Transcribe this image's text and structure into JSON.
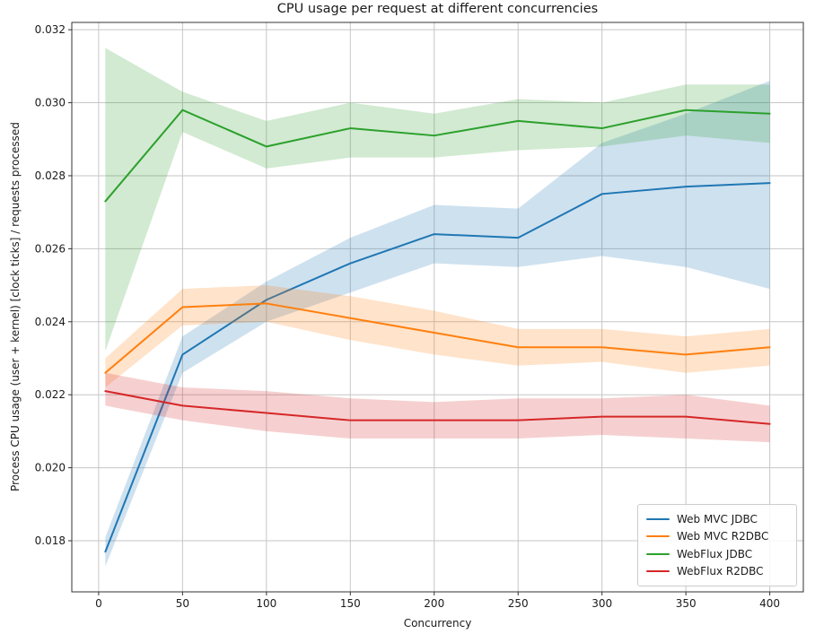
{
  "chart_data": {
    "type": "line",
    "title": "CPU usage per request at different concurrencies",
    "xlabel": "Concurrency",
    "ylabel": "Process CPU usage (user + kernel) [clock ticks] / requests processed",
    "x": [
      4,
      50,
      100,
      150,
      200,
      250,
      300,
      350,
      400
    ],
    "xticks": [
      0,
      50,
      100,
      150,
      200,
      250,
      300,
      350,
      400
    ],
    "xticklabels": [
      "0",
      "50",
      "100",
      "150",
      "200",
      "250",
      "300",
      "350",
      "400"
    ],
    "yticks": [
      0.018,
      0.02,
      0.022,
      0.024,
      0.026,
      0.028,
      0.03,
      0.032
    ],
    "yticklabels": [
      "0.018",
      "0.020",
      "0.022",
      "0.024",
      "0.026",
      "0.028",
      "0.030",
      "0.032"
    ],
    "xlim": [
      -16,
      420
    ],
    "ylim": [
      0.0166,
      0.0322
    ],
    "grid": true,
    "legend_position": "lower right",
    "band_alpha": 0.22,
    "grid_color": "#c6c6c6",
    "axis_color": "#333333",
    "text_color": "#1a1a1a",
    "series": [
      {
        "name": "Web MVC JDBC",
        "color": "#1f77b4",
        "mean": [
          0.0177,
          0.0231,
          0.0246,
          0.0256,
          0.0264,
          0.0263,
          0.0275,
          0.0277,
          0.0278
        ],
        "low": [
          0.0173,
          0.0226,
          0.024,
          0.0248,
          0.0256,
          0.0255,
          0.0258,
          0.0255,
          0.0249
        ],
        "high": [
          0.0181,
          0.0236,
          0.0251,
          0.0263,
          0.0272,
          0.0271,
          0.0289,
          0.0297,
          0.0306
        ]
      },
      {
        "name": "Web MVC R2DBC",
        "color": "#ff7f0e",
        "mean": [
          0.0226,
          0.0244,
          0.0245,
          0.0241,
          0.0237,
          0.0233,
          0.0233,
          0.0231,
          0.0233
        ],
        "low": [
          0.0222,
          0.0239,
          0.024,
          0.0235,
          0.0231,
          0.0228,
          0.0229,
          0.0226,
          0.0228
        ],
        "high": [
          0.023,
          0.0249,
          0.025,
          0.0247,
          0.0243,
          0.0238,
          0.0238,
          0.0236,
          0.0238
        ]
      },
      {
        "name": "WebFlux JDBC",
        "color": "#2ca02c",
        "mean": [
          0.0273,
          0.0298,
          0.0288,
          0.0293,
          0.0291,
          0.0295,
          0.0293,
          0.0298,
          0.0297
        ],
        "low": [
          0.0232,
          0.0292,
          0.0282,
          0.0285,
          0.0285,
          0.0287,
          0.0288,
          0.0291,
          0.0289
        ],
        "high": [
          0.0315,
          0.0303,
          0.0295,
          0.03,
          0.0297,
          0.0301,
          0.03,
          0.0305,
          0.0305
        ]
      },
      {
        "name": "WebFlux R2DBC",
        "color": "#d62728",
        "mean": [
          0.0221,
          0.0217,
          0.0215,
          0.0213,
          0.0213,
          0.0213,
          0.0214,
          0.0214,
          0.0212
        ],
        "low": [
          0.0217,
          0.0213,
          0.021,
          0.0208,
          0.0208,
          0.0208,
          0.0209,
          0.0208,
          0.0207
        ],
        "high": [
          0.0226,
          0.0222,
          0.0221,
          0.0219,
          0.0218,
          0.0219,
          0.0219,
          0.022,
          0.0217
        ]
      }
    ]
  }
}
